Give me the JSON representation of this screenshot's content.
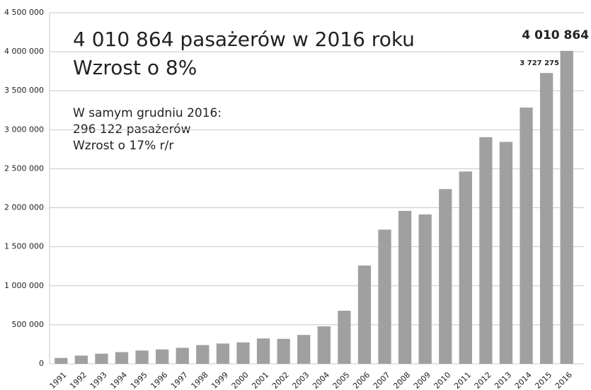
{
  "chart_data": {
    "type": "bar",
    "annotations": [
      "4 010 864 pasażerów w 2016 roku",
      "Wzrost o 8%",
      "W samym grudniu 2016:",
      "296 122 pasażerów",
      "Wzrost o 17% r/r"
    ],
    "categories": [
      "1991",
      "1992",
      "1993",
      "1994",
      "1995",
      "1996",
      "1997",
      "1998",
      "1999",
      "2000",
      "2001",
      "2002",
      "2003",
      "2004",
      "2005",
      "2006",
      "2007",
      "2008",
      "2009",
      "2010",
      "2011",
      "2012",
      "2013",
      "2014",
      "2015",
      "2016"
    ],
    "values": [
      75000,
      105000,
      130000,
      150000,
      170000,
      185000,
      205000,
      240000,
      260000,
      275000,
      325000,
      320000,
      370000,
      480000,
      680000,
      1260000,
      1720000,
      1960000,
      1915000,
      2240000,
      2465000,
      2905000,
      2845000,
      3285000,
      3727275,
      4010864
    ],
    "value_labels": [
      null,
      null,
      null,
      null,
      null,
      null,
      null,
      null,
      null,
      null,
      null,
      null,
      null,
      null,
      null,
      null,
      null,
      null,
      null,
      null,
      null,
      null,
      null,
      null,
      "3 727 275",
      "4 010 864"
    ],
    "color": "#a0a0a0",
    "ylim": [
      0,
      4500000
    ],
    "yticks": [
      0,
      {
        "value": 500000,
        "label": "500 000"
      },
      {
        "value": 1000000,
        "label": "1 000 000"
      },
      {
        "value": 1500000,
        "label": "1 500 000"
      },
      {
        "value": 2000000,
        "label": "2 000 000"
      },
      {
        "value": 2500000,
        "label": "2 500 000"
      },
      {
        "value": 3000000,
        "label": "3 000 000"
      },
      {
        "value": 3500000,
        "label": "3 500 000"
      },
      {
        "value": 4000000,
        "label": "4 000 000"
      },
      {
        "value": 4500000,
        "label": "4 500 000"
      }
    ],
    "grid": true
  }
}
